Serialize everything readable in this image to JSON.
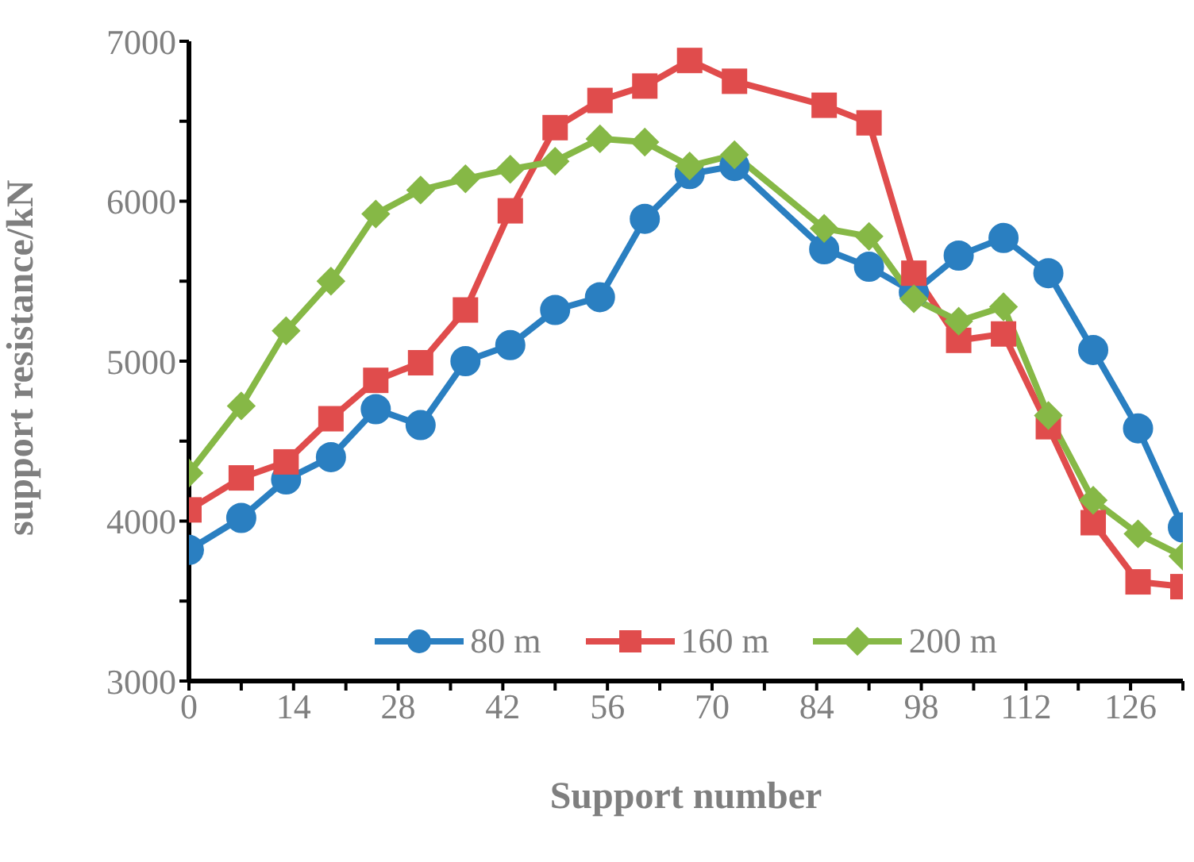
{
  "chart_data": {
    "type": "line",
    "xlabel": "Support number",
    "ylabel": "support resistance/kN",
    "x": [
      0,
      7,
      13,
      19,
      25,
      31,
      37,
      43,
      49,
      55,
      61,
      67,
      73,
      85,
      91,
      97,
      103,
      109,
      115,
      121,
      127,
      133
    ],
    "series": [
      {
        "name": "80 m",
        "color": "#2a7fc1",
        "marker": "circle",
        "values": [
          3820,
          4020,
          4260,
          4400,
          4700,
          4600,
          5000,
          5100,
          5320,
          5400,
          5890,
          6170,
          6220,
          5700,
          5590,
          5430,
          5660,
          5770,
          5550,
          5070,
          4580,
          3960
        ]
      },
      {
        "name": "160 m",
        "color": "#e04c4c",
        "marker": "square",
        "values": [
          4070,
          4270,
          4370,
          4640,
          4880,
          4990,
          5320,
          5940,
          6460,
          6630,
          6720,
          6880,
          6750,
          6600,
          6490,
          5550,
          5130,
          5170,
          4590,
          3990,
          3620,
          3590
        ]
      },
      {
        "name": "200 m",
        "color": "#86b846",
        "marker": "diamond",
        "values": [
          4300,
          4720,
          5190,
          5500,
          5920,
          6070,
          6140,
          6200,
          6250,
          6390,
          6370,
          6220,
          6290,
          5830,
          5780,
          5390,
          5250,
          5340,
          4660,
          4130,
          3920,
          3780
        ]
      }
    ],
    "xlim": [
      0,
      133
    ],
    "xticks": [
      0,
      {
        "value": 7,
        "label": null
      },
      14,
      {
        "value": 21,
        "label": null
      },
      28,
      {
        "value": 35,
        "label": null
      },
      42,
      {
        "value": 49,
        "label": null
      },
      56,
      {
        "value": 63,
        "label": null
      },
      70,
      {
        "value": 77,
        "label": null
      },
      84,
      {
        "value": 91,
        "label": null
      },
      98,
      {
        "value": 105,
        "label": null
      },
      112,
      {
        "value": 119,
        "label": null
      },
      126,
      {
        "value": 133,
        "label": null
      }
    ],
    "ylim": [
      3000,
      7000
    ],
    "yticks": [
      3000,
      {
        "value": 3500,
        "label": null
      },
      4000,
      {
        "value": 4500,
        "label": null
      },
      5000,
      {
        "value": 5500,
        "label": null
      },
      6000,
      {
        "value": 6500,
        "label": null
      },
      7000
    ],
    "grid": false,
    "legend": "bottom",
    "line_style": "solid"
  }
}
